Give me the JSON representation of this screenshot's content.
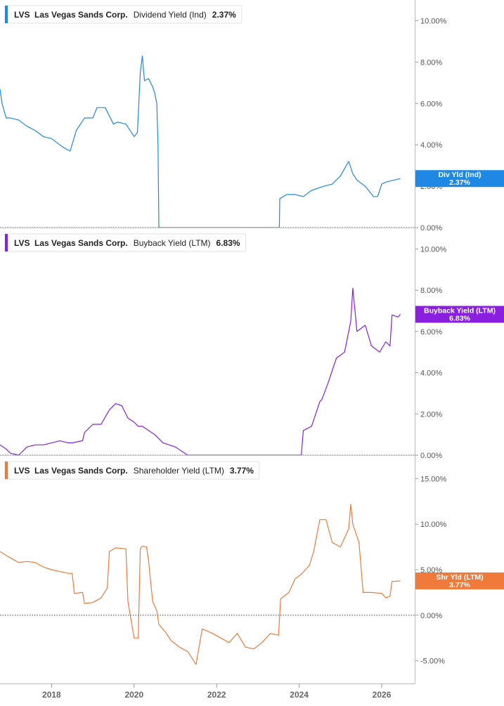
{
  "chart_data": [
    {
      "type": "line",
      "ticker": "LVS",
      "company": "Las Vegas Sands Corp.",
      "metric": "Dividend Yield (Ind)",
      "current_value": "2.37%",
      "badge_label": "Div Yld (Ind)",
      "badge_value": "2.37%",
      "color": "#1f88e5",
      "y_ticks": [
        "10.00%",
        "8.00%",
        "6.00%",
        "4.00%",
        "2.00%",
        "0.00%"
      ],
      "y_tick_values": [
        10,
        8,
        6,
        4,
        2,
        0
      ],
      "ylim": [
        0,
        11
      ],
      "series": [
        {
          "x": [
            2016.75,
            2016.8,
            2016.9,
            2017.0,
            2017.2,
            2017.4,
            2017.6,
            2017.8,
            2018.0,
            2018.2,
            2018.35,
            2018.45,
            2018.6,
            2018.8,
            2019.0,
            2019.1,
            2019.3,
            2019.5,
            2019.6,
            2019.8,
            2020.0,
            2020.08,
            2020.15,
            2020.2,
            2020.25,
            2020.35,
            2020.45,
            2020.5,
            2020.55,
            2020.58,
            2020.6,
            2021.0,
            2021.5,
            2022.0,
            2022.5,
            2023.0,
            2023.35,
            2023.52,
            2023.53,
            2023.7,
            2023.9,
            2024.1,
            2024.3,
            2024.6,
            2024.8,
            2025.0,
            2025.2,
            2025.3,
            2025.4,
            2025.6,
            2025.8,
            2025.9,
            2026.0,
            2026.1,
            2026.3,
            2026.45
          ],
          "y": [
            6.7,
            6.0,
            5.3,
            5.3,
            5.2,
            4.9,
            4.7,
            4.4,
            4.3,
            4.0,
            3.8,
            3.7,
            4.7,
            5.3,
            5.3,
            5.8,
            5.8,
            5.0,
            5.1,
            5.0,
            4.4,
            4.6,
            7.5,
            8.3,
            7.1,
            7.2,
            6.8,
            6.5,
            6.0,
            4.0,
            0.0,
            0.0,
            0.0,
            0.0,
            0.0,
            0.0,
            0.0,
            0.0,
            1.4,
            1.6,
            1.6,
            1.5,
            1.8,
            2.0,
            2.1,
            2.5,
            3.2,
            2.6,
            2.3,
            2.0,
            1.5,
            1.5,
            2.1,
            2.2,
            2.3,
            2.37
          ]
        }
      ]
    },
    {
      "type": "line",
      "ticker": "LVS",
      "company": "Las Vegas Sands Corp.",
      "metric": "Buyback Yield (LTM)",
      "current_value": "6.83%",
      "badge_label": "Buyback Yield (LTM)",
      "badge_value": "6.83%",
      "color": "#8a1fe0",
      "y_ticks": [
        "10.00%",
        "8.00%",
        "6.00%",
        "4.00%",
        "2.00%",
        "0.00%"
      ],
      "y_tick_values": [
        10,
        8,
        6,
        4,
        2,
        0
      ],
      "ylim": [
        0,
        11
      ],
      "series": [
        {
          "x": [
            2016.75,
            2016.9,
            2017.0,
            2017.2,
            2017.4,
            2017.6,
            2017.8,
            2018.0,
            2018.2,
            2018.4,
            2018.5,
            2018.75,
            2018.8,
            2019.0,
            2019.2,
            2019.4,
            2019.55,
            2019.7,
            2019.85,
            2020.0,
            2020.1,
            2020.2,
            2020.35,
            2020.5,
            2020.7,
            2021.0,
            2021.3,
            2021.7,
            2022.0,
            2022.5,
            2023.0,
            2023.5,
            2024.0,
            2024.05,
            2024.1,
            2024.2,
            2024.3,
            2024.5,
            2024.55,
            2024.7,
            2024.9,
            2025.1,
            2025.2,
            2025.25,
            2025.3,
            2025.4,
            2025.6,
            2025.75,
            2025.95,
            2026.1,
            2026.2,
            2026.25,
            2026.4,
            2026.45
          ],
          "y": [
            0.5,
            0.3,
            0.1,
            0.0,
            0.4,
            0.5,
            0.5,
            0.6,
            0.7,
            0.6,
            0.6,
            0.7,
            1.1,
            1.5,
            1.5,
            2.2,
            2.5,
            2.4,
            1.8,
            1.6,
            1.4,
            1.4,
            1.2,
            1.0,
            0.6,
            0.4,
            0.0,
            0.0,
            0.0,
            0.0,
            0.0,
            0.0,
            0.0,
            0.0,
            1.2,
            1.3,
            1.4,
            2.6,
            2.7,
            3.5,
            4.7,
            5.0,
            6.0,
            6.5,
            8.1,
            6.0,
            6.3,
            5.3,
            5.0,
            5.5,
            5.3,
            6.8,
            6.7,
            6.83
          ]
        }
      ]
    },
    {
      "type": "line",
      "ticker": "LVS",
      "company": "Las Vegas Sands Corp.",
      "metric": "Shareholder Yield (LTM)",
      "current_value": "3.77%",
      "badge_label": "Shr Yld (LTM)",
      "badge_value": "3.77%",
      "color": "#f07a3a",
      "y_ticks": [
        "15.00%",
        "10.00%",
        "5.00%",
        "0.00%",
        "-5.00%"
      ],
      "y_tick_values": [
        15,
        10,
        5,
        0,
        -5
      ],
      "ylim": [
        -7.5,
        17.5
      ],
      "series": [
        {
          "x": [
            2016.75,
            2017.0,
            2017.2,
            2017.4,
            2017.6,
            2017.8,
            2018.0,
            2018.2,
            2018.4,
            2018.5,
            2018.55,
            2018.75,
            2018.8,
            2019.0,
            2019.2,
            2019.35,
            2019.4,
            2019.55,
            2019.8,
            2019.85,
            2020.0,
            2020.1,
            2020.15,
            2020.2,
            2020.3,
            2020.35,
            2020.45,
            2020.55,
            2020.6,
            2020.75,
            2020.9,
            2021.1,
            2021.3,
            2021.5,
            2021.65,
            2021.9,
            2022.1,
            2022.3,
            2022.5,
            2022.7,
            2022.9,
            2023.1,
            2023.3,
            2023.5,
            2023.55,
            2023.75,
            2023.9,
            2024.05,
            2024.25,
            2024.35,
            2024.5,
            2024.65,
            2024.8,
            2025.0,
            2025.2,
            2025.25,
            2025.3,
            2025.45,
            2025.55,
            2025.75,
            2026.0,
            2026.1,
            2026.2,
            2026.25,
            2026.45
          ],
          "y": [
            7.0,
            6.3,
            5.8,
            5.9,
            5.8,
            5.3,
            5.0,
            4.8,
            4.6,
            4.6,
            2.4,
            2.5,
            1.3,
            1.4,
            1.9,
            3.0,
            7.0,
            7.4,
            7.3,
            1.5,
            -2.5,
            -2.5,
            7.3,
            7.6,
            7.5,
            6.0,
            1.5,
            0.5,
            -1.0,
            -1.8,
            -2.8,
            -3.5,
            -4.0,
            -5.4,
            -1.5,
            -2.0,
            -2.5,
            -3.0,
            -2.0,
            -3.5,
            -3.7,
            -3.0,
            -2.0,
            -2.2,
            1.8,
            2.5,
            4.0,
            4.5,
            5.5,
            7.0,
            10.5,
            10.5,
            8.0,
            7.5,
            9.5,
            12.2,
            10.0,
            8.0,
            2.5,
            2.5,
            2.4,
            1.9,
            2.1,
            3.7,
            3.77
          ]
        }
      ]
    }
  ],
  "x_axis": {
    "ticks": [
      "2018",
      "2020",
      "2022",
      "2024",
      "2026"
    ],
    "tick_values": [
      2018,
      2020,
      2022,
      2024,
      2026
    ],
    "xlim": [
      2016.75,
      2026.8
    ]
  }
}
